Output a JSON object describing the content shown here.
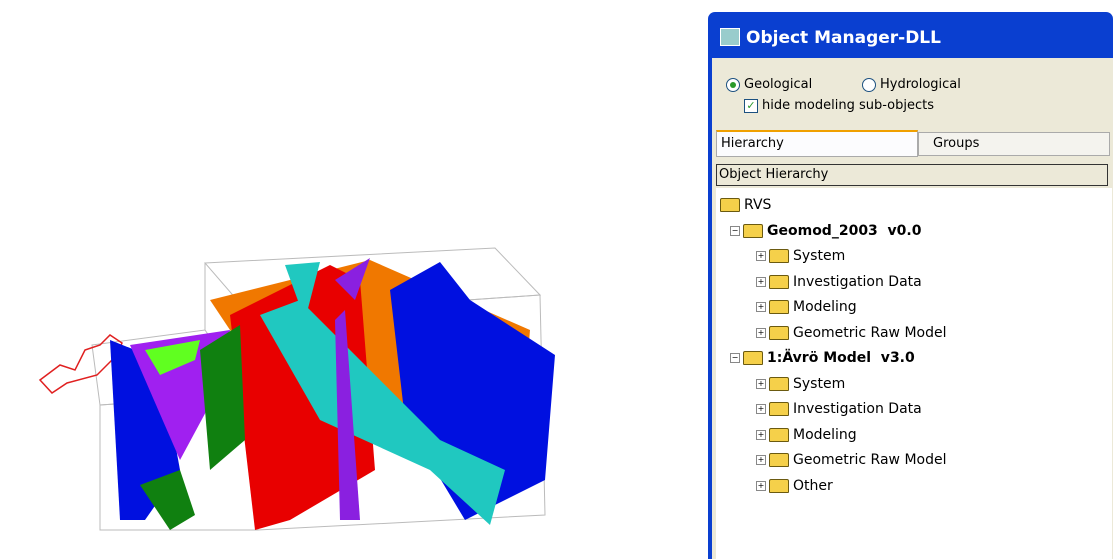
{
  "window": {
    "title": "Object Manager-DLL",
    "options": {
      "radio_1": "Geological",
      "radio_2": "Hydrological",
      "checkbox": "hide modeling sub-objects"
    },
    "tabs": [
      "Hierarchy",
      "Groups"
    ],
    "panel_header": "Object Hierarchy",
    "tree": {
      "root": "RVS",
      "models": [
        {
          "label": "Geomod_2003  v0.0",
          "items": [
            "System",
            "Investigation Data",
            "Modeling",
            "Geometric Raw Model"
          ]
        },
        {
          "label": "1:Ävrö Model  v3.0",
          "items": [
            "System",
            "Investigation Data",
            "Modeling",
            "Geometric Raw Model",
            "Other"
          ]
        }
      ]
    }
  }
}
